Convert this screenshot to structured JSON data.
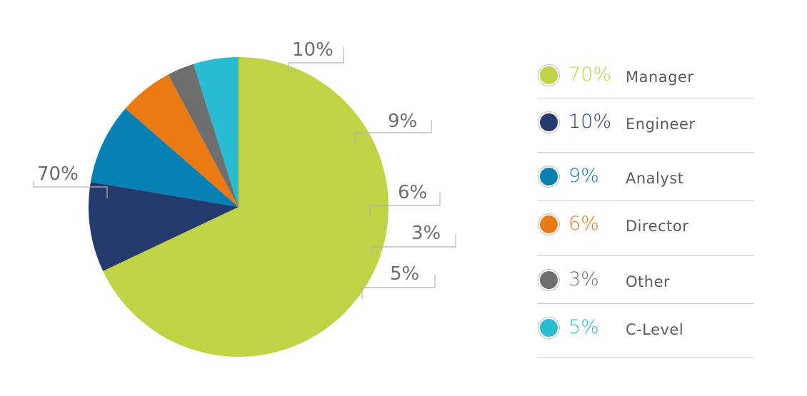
{
  "chart_data": {
    "type": "pie",
    "title": "",
    "slices": [
      {
        "label": "Manager",
        "value": 70,
        "display": "70%",
        "color": "#c1d244"
      },
      {
        "label": "Engineer",
        "value": 10,
        "display": "10%",
        "color": "#253b6e"
      },
      {
        "label": "Analyst",
        "value": 9,
        "display": "9%",
        "color": "#0780b4"
      },
      {
        "label": "Director",
        "value": 6,
        "display": "6%",
        "color": "#ec7a13"
      },
      {
        "label": "Other",
        "value": 3,
        "display": "3%",
        "color": "#6e6e6e"
      },
      {
        "label": "C-Level",
        "value": 5,
        "display": "5%",
        "color": "#28bcd3"
      }
    ],
    "legend_placement": "right"
  },
  "legend": {
    "items": [
      {
        "pct": "70%",
        "name": "Manager",
        "color": "#c1d244"
      },
      {
        "pct": "10%",
        "name": "Engineer",
        "color": "#253b6e"
      },
      {
        "pct": "9%",
        "name": "Analyst",
        "color": "#0780b4"
      },
      {
        "pct": "6%",
        "name": "Director",
        "color": "#ec7a13"
      },
      {
        "pct": "3%",
        "name": "Other",
        "color": "#6e6e6e"
      },
      {
        "pct": "5%",
        "name": "C-Level",
        "color": "#28bcd3"
      }
    ]
  }
}
